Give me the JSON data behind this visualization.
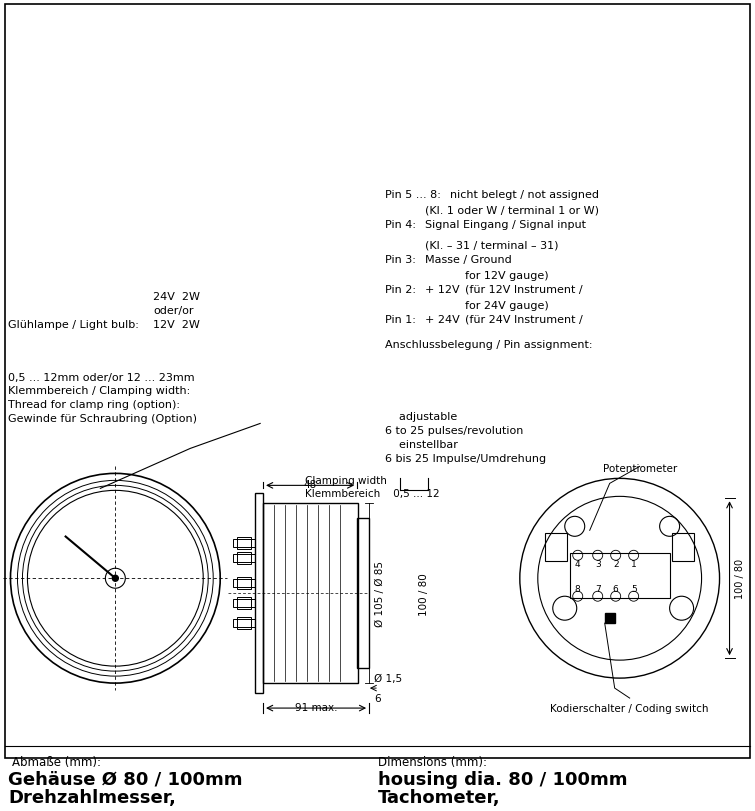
{
  "title_left_line1": "Drehzahlmesser,",
  "title_left_line2": "Gehäuse Ø 80 / 100mm",
  "title_right_line1": "Tachometer,",
  "title_right_line2": "housing dia. 80 / 100mm",
  "label_abmasse": "Abmaße (mm):",
  "label_dimensions": "Dimensions (mm):",
  "text_klemmbereich_label": "Klemmbereich    0,5 ... 12",
  "text_clamping_width": "Clamping width",
  "text_91max": "91 max.",
  "text_dia15": "Ø 1,5",
  "text_dia105_85": "Ø 105 / Ø 85",
  "text_6": "6",
  "text_48": "48",
  "text_100_80": "100 / 80",
  "text_coding_switch": "Kodierschalter / Coding switch",
  "text_potentiometer": "Potentiometer",
  "text_pulses1": "6 bis 25 Impulse/Umdrehung",
  "text_pulses2": "    einstellbar",
  "text_pulses3": "6 to 25 pulses/revolution",
  "text_pulses4": "    adjustable",
  "text_gewinde1": "Gewinde für Schraubring (Option)",
  "text_gewinde2": "Thread for clamp ring (option):",
  "text_gewinde3": "Klemmbereich / Clamping width:",
  "text_gewinde4": "0,5 ... 12mm oder/or 12 ... 23mm",
  "text_gluehlampe": "Glühlampe / Light bulb:",
  "text_12v2w": "12V  2W",
  "text_oderor": "oder/or",
  "text_24v2w": "24V  2W",
  "text_anschluss": "Anschlussbelegung / Pin assignment:",
  "pin1_label": "Pin 1:",
  "pin1_val": "+ 24V",
  "pin1_desc": "(für 24V Instrument /",
  "pin1_desc2": "for 24V gauge)",
  "pin2_label": "Pin 2:",
  "pin2_val": "+ 12V",
  "pin2_desc": "(für 12V Instrument /",
  "pin2_desc2": "for 12V gauge)",
  "pin3_label": "Pin 3:",
  "pin3_val": "Masse / Ground",
  "pin3_desc": "(Kl. – 31 / terminal – 31)",
  "pin4_label": "Pin 4:",
  "pin4_val": "Signal Eingang / Signal input",
  "pin4_desc": "(Kl. 1 oder W / terminal 1 or W)",
  "pin5_label": "Pin 5 ... 8:",
  "pin5_val": "nicht belegt / not assigned",
  "bg_color": "#ffffff",
  "border_color": "#000000",
  "text_color": "#000000",
  "pin_numbers": [
    "8",
    "7",
    "6",
    "5",
    "4",
    "3",
    "2",
    "1"
  ]
}
